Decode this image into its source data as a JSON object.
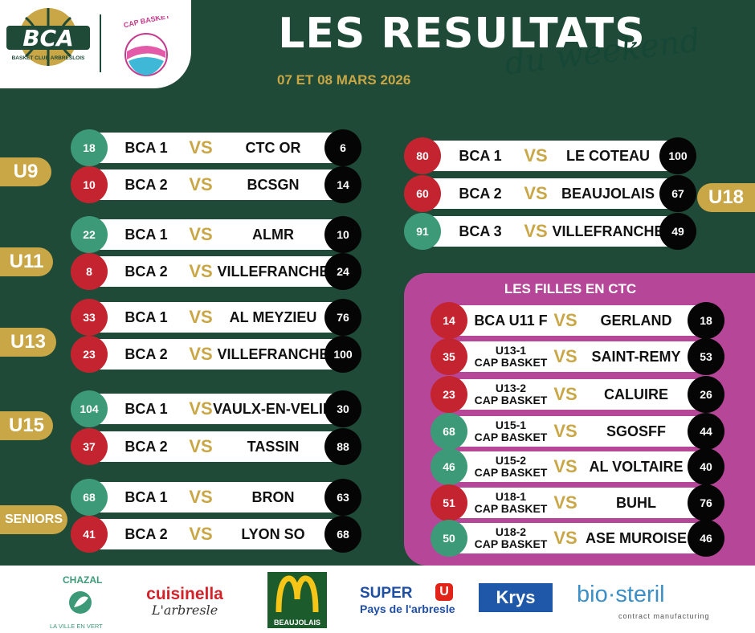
{
  "header": {
    "title": "LES RESULTATS",
    "subtitle": "du weekend",
    "date": "07 ET 08 MARS 2026",
    "bca_logo_text": "BCA",
    "bca_logo_sub": "BASKET CLUB ARBRESLOIS",
    "cap_logo_text": "CAP BASKET"
  },
  "colors": {
    "background": "#1f4a37",
    "gold": "#c9a646",
    "win": "#3d9a78",
    "loss": "#c42430",
    "away": "#050505",
    "ctc_panel": "#b64798"
  },
  "categories": [
    {
      "label": "U9",
      "matches": [
        {
          "home": "BCA 1",
          "home_score": "18",
          "away": "CTC OR",
          "away_score": "6"
        },
        {
          "home": "BCA 2",
          "home_score": "10",
          "away": "BCSGN",
          "away_score": "14"
        }
      ]
    },
    {
      "label": "U11",
      "matches": [
        {
          "home": "BCA 1",
          "home_score": "22",
          "away": "ALMR",
          "away_score": "10"
        },
        {
          "home": "BCA 2",
          "home_score": "8",
          "away": "VILLEFRANCHE",
          "away_score": "24"
        }
      ]
    },
    {
      "label": "U13",
      "matches": [
        {
          "home": "BCA 1",
          "home_score": "33",
          "away": "AL MEYZIEU",
          "away_score": "76"
        },
        {
          "home": "BCA 2",
          "home_score": "23",
          "away": "VILLEFRANCHE",
          "away_score": "100"
        }
      ]
    },
    {
      "label": "U15",
      "matches": [
        {
          "home": "BCA 1",
          "home_score": "104",
          "away": "VAULX-EN-VELIN",
          "away_score": "30"
        },
        {
          "home": "BCA 2",
          "home_score": "37",
          "away": "TASSIN",
          "away_score": "88"
        }
      ]
    },
    {
      "label": "SENIORS",
      "matches": [
        {
          "home": "BCA 1",
          "home_score": "68",
          "away": "BRON",
          "away_score": "63"
        },
        {
          "home": "BCA 2",
          "home_score": "41",
          "away": "LYON SO",
          "away_score": "68"
        }
      ]
    },
    {
      "label": "U18",
      "matches": [
        {
          "home": "BCA 1",
          "home_score": "80",
          "away": "LE COTEAU",
          "away_score": "100"
        },
        {
          "home": "BCA 2",
          "home_score": "60",
          "away": "BEAUJOLAIS",
          "away_score": "67"
        },
        {
          "home": "BCA 3",
          "home_score": "91",
          "away": "VILLEFRANCHE",
          "away_score": "49"
        }
      ]
    }
  ],
  "ctc": {
    "title": "LES FILLES EN CTC",
    "matches": [
      {
        "home_l1": "BCA U11 F",
        "home_l2": "",
        "home_score": "14",
        "away": "GERLAND",
        "away_score": "18"
      },
      {
        "home_l1": "U13-1",
        "home_l2": "CAP BASKET",
        "home_score": "35",
        "away": "SAINT-REMY",
        "away_score": "53"
      },
      {
        "home_l1": "U13-2",
        "home_l2": "CAP BASKET",
        "home_score": "23",
        "away": "CALUIRE",
        "away_score": "26"
      },
      {
        "home_l1": "U15-1",
        "home_l2": "CAP BASKET",
        "home_score": "68",
        "away": "SGOSFF",
        "away_score": "44"
      },
      {
        "home_l1": "U15-2",
        "home_l2": "CAP BASKET",
        "home_score": "46",
        "away": "AL VOLTAIRE",
        "away_score": "40"
      },
      {
        "home_l1": "U18-1",
        "home_l2": "CAP BASKET",
        "home_score": "51",
        "away": "BUHL",
        "away_score": "76"
      },
      {
        "home_l1": "U18-2",
        "home_l2": "CAP BASKET",
        "home_score": "50",
        "away": "ASE MUROISE",
        "away_score": "46"
      }
    ]
  },
  "vs_label": "VS",
  "sponsors": {
    "chazal": "CHAZAL",
    "chazal_tag": "LA VILLE EN VERT",
    "cuisinella_name": "cuisinella",
    "cuisinella_city": "L'arbresle",
    "mcdonalds": "BEAUJOLAIS",
    "superu_name": "SUPER",
    "superu_u": "U",
    "superu_sub": "Pays de l'arbresle",
    "krys": "Krys",
    "biosteril_name": "bio·steril",
    "biosteril_sub": "contract manufacturing"
  }
}
